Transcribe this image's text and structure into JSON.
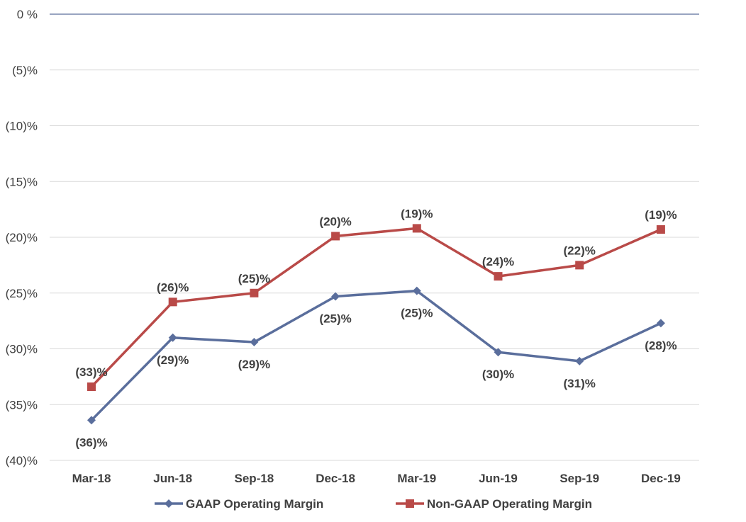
{
  "chart_data": {
    "type": "line",
    "title": "",
    "xlabel": "",
    "ylabel": "",
    "categories": [
      "Mar-18",
      "Jun-18",
      "Sep-18",
      "Dec-18",
      "Mar-19",
      "Jun-19",
      "Sep-19",
      "Dec-19"
    ],
    "ylim": [
      -40,
      0
    ],
    "yticks": [
      0,
      -5,
      -10,
      -15,
      -20,
      -25,
      -30,
      -35,
      -40
    ],
    "ytick_labels": [
      "0 %",
      "(5)%",
      "(10)%",
      "(15)%",
      "(20)%",
      "(25)%",
      "(30)%",
      "(35)%",
      "(40)%"
    ],
    "grid": "horizontal",
    "legend_position": "bottom",
    "series": [
      {
        "name": "GAAP Operating Margin",
        "color": "#5A6E9C",
        "marker": "diamond",
        "values": [
          -36.4,
          -29.0,
          -29.4,
          -25.3,
          -24.8,
          -30.3,
          -31.1,
          -27.7
        ],
        "labels": [
          "(36)%",
          "(29)%",
          "(29)%",
          "(25)%",
          "(25)%",
          "(30)%",
          "(31)%",
          "(28)%"
        ],
        "label_position": "below"
      },
      {
        "name": "Non-GAAP Operating Margin",
        "color": "#B94A48",
        "marker": "square",
        "values": [
          -33.4,
          -25.8,
          -25.0,
          -19.9,
          -19.2,
          -23.5,
          -22.5,
          -19.3
        ],
        "labels": [
          "(33)%",
          "(26)%",
          "(25)%",
          "(20)%",
          "(19)%",
          "(24)%",
          "(22)%",
          "(19)%"
        ],
        "label_position": "above"
      }
    ]
  }
}
